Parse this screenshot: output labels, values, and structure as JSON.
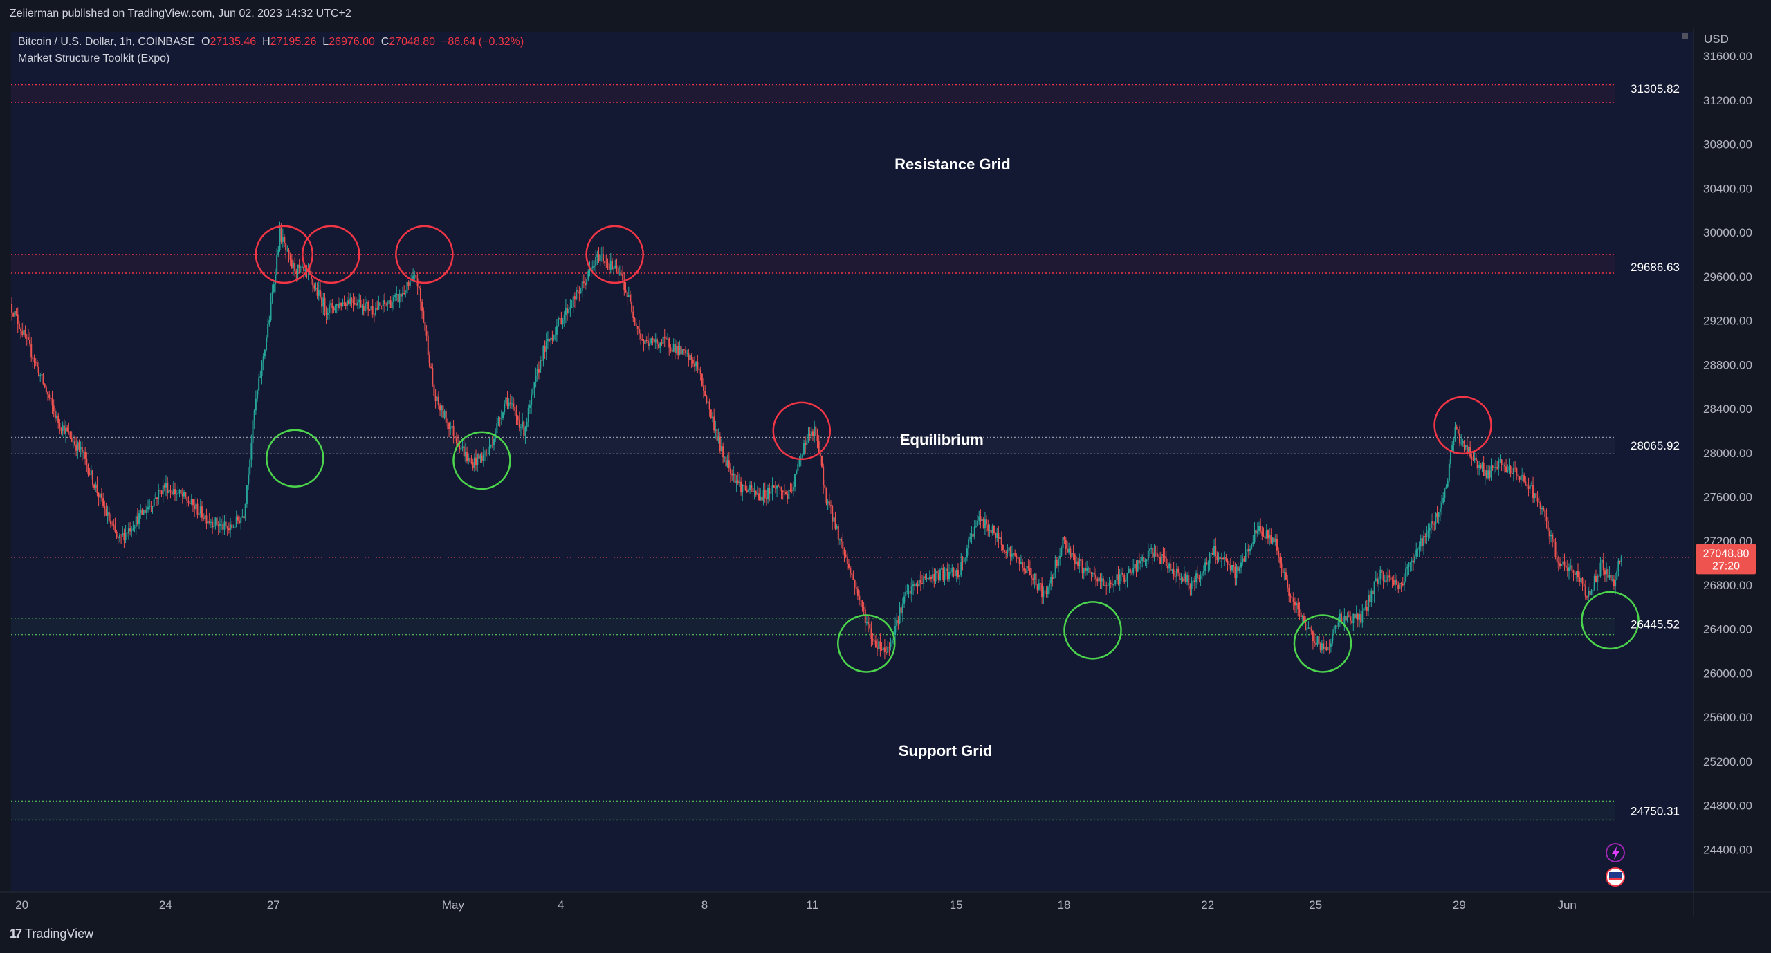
{
  "header": {
    "published_text": "Zeiierman published on TradingView.com, Jun 02, 2023 14:32 UTC+2"
  },
  "legend": {
    "symbol": "Bitcoin / U.S. Dollar, 1h, COINBASE",
    "open_label": "O",
    "open": "27135.46",
    "high_label": "H",
    "high": "27195.26",
    "low_label": "L",
    "low": "26976.00",
    "close_label": "C",
    "close": "27048.80",
    "change": "−86.64 (−0.32%)",
    "indicator": "Market Structure Toolkit (Expo)"
  },
  "footer": {
    "brand": "TradingView"
  },
  "colors": {
    "background": "#131722",
    "plot_background": "#131833",
    "up": "#26a69a",
    "down": "#ef5350",
    "resistance": "#f23645",
    "support": "#4caf50",
    "equilibrium": "#9598a1",
    "circle_red": "#f23645",
    "circle_green": "#4cd44c"
  },
  "icons": [
    "lightning-icon",
    "flag-icon"
  ],
  "chart_data": {
    "type": "candlestick",
    "symbol": "Bitcoin / U.S. Dollar",
    "interval": "1h",
    "currency": "USD",
    "y_ticks": [
      24400,
      24800,
      25200,
      25600,
      26000,
      26400,
      26800,
      27200,
      27600,
      28000,
      28400,
      28800,
      29200,
      29600,
      30000,
      30400,
      30800,
      31200,
      31600
    ],
    "y_tick_labels": [
      "24400.00",
      "24800.00",
      "25200.00",
      "25600.00",
      "26000.00",
      "26400.00",
      "26800.00",
      "27200.00",
      "27600.00",
      "28000.00",
      "28400.00",
      "28800.00",
      "29200.00",
      "29600.00",
      "30000.00",
      "30400.00",
      "30800.00",
      "31200.00",
      "31600.00"
    ],
    "ylim": [
      24020,
      31820
    ],
    "x_ticks": [
      "20",
      "24",
      "27",
      "May",
      "4",
      "8",
      "11",
      "15",
      "18",
      "22",
      "25",
      "29",
      "Jun"
    ],
    "x_tick_days": [
      -11,
      -7,
      -4,
      1,
      4,
      8,
      11,
      15,
      18,
      22,
      25,
      29,
      32
    ],
    "xlim": [
      -11.3,
      35.5
    ],
    "last_price": "27048.80",
    "countdown": "27:20",
    "price_path": [
      [
        -11.3,
        29350
      ],
      [
        -10.7,
        28900
      ],
      [
        -10,
        28300
      ],
      [
        -9.3,
        28000
      ],
      [
        -8.7,
        27500
      ],
      [
        -8.3,
        27200
      ],
      [
        -7.5,
        27500
      ],
      [
        -7,
        27700
      ],
      [
        -6.5,
        27600
      ],
      [
        -5.8,
        27400
      ],
      [
        -5.2,
        27300
      ],
      [
        -4.8,
        27450
      ],
      [
        -4.5,
        28400
      ],
      [
        -4.1,
        29200
      ],
      [
        -3.8,
        30000
      ],
      [
        -3.5,
        29700
      ],
      [
        -3,
        29600
      ],
      [
        -2.5,
        29300
      ],
      [
        -1.8,
        29400
      ],
      [
        -1.2,
        29300
      ],
      [
        -0.5,
        29400
      ],
      [
        0,
        29600
      ],
      [
        0.3,
        29000
      ],
      [
        0.5,
        28500
      ],
      [
        1,
        28200
      ],
      [
        1.5,
        27900
      ],
      [
        2,
        28000
      ],
      [
        2.5,
        28500
      ],
      [
        3,
        28200
      ],
      [
        3.5,
        28900
      ],
      [
        4,
        29200
      ],
      [
        4.6,
        29500
      ],
      [
        5.1,
        29800
      ],
      [
        5.7,
        29600
      ],
      [
        6.3,
        29000
      ],
      [
        7,
        29000
      ],
      [
        7.8,
        28800
      ],
      [
        8.5,
        28000
      ],
      [
        9,
        27700
      ],
      [
        9.6,
        27600
      ],
      [
        10,
        27700
      ],
      [
        10.4,
        27600
      ],
      [
        10.8,
        28100
      ],
      [
        11.1,
        28200
      ],
      [
        11.4,
        27600
      ],
      [
        11.8,
        27200
      ],
      [
        12.3,
        26700
      ],
      [
        12.7,
        26300
      ],
      [
        13.1,
        26200
      ],
      [
        13.6,
        26700
      ],
      [
        14.1,
        26850
      ],
      [
        14.6,
        26900
      ],
      [
        15.1,
        26900
      ],
      [
        15.6,
        27400
      ],
      [
        16,
        27300
      ],
      [
        16.5,
        27100
      ],
      [
        17.1,
        26900
      ],
      [
        17.5,
        26700
      ],
      [
        18,
        27200
      ],
      [
        18.4,
        27000
      ],
      [
        18.7,
        26900
      ],
      [
        19.2,
        26800
      ],
      [
        19.8,
        26900
      ],
      [
        20.5,
        27100
      ],
      [
        21,
        26950
      ],
      [
        21.6,
        26800
      ],
      [
        22.2,
        27100
      ],
      [
        22.8,
        26900
      ],
      [
        23.4,
        27300
      ],
      [
        23.9,
        27200
      ],
      [
        24.3,
        26700
      ],
      [
        24.8,
        26400
      ],
      [
        25.3,
        26200
      ],
      [
        25.7,
        26500
      ],
      [
        26.3,
        26500
      ],
      [
        26.8,
        26900
      ],
      [
        27.4,
        26800
      ],
      [
        27.8,
        27100
      ],
      [
        28.2,
        27300
      ],
      [
        28.6,
        27600
      ],
      [
        28.9,
        28200
      ],
      [
        29.3,
        28000
      ],
      [
        29.8,
        27800
      ],
      [
        30.2,
        27900
      ],
      [
        30.6,
        27800
      ],
      [
        31,
        27700
      ],
      [
        31.4,
        27400
      ],
      [
        31.8,
        27000
      ],
      [
        32.3,
        26900
      ],
      [
        32.6,
        26700
      ],
      [
        33,
        27000
      ],
      [
        33.3,
        26800
      ],
      [
        33.5,
        27050
      ]
    ],
    "levels": [
      {
        "name": "resistance-top",
        "value": 31305.82,
        "label": "31305.82",
        "band": [
          31180,
          31340
        ],
        "color": "resistance"
      },
      {
        "name": "resistance",
        "value": 29686.63,
        "label": "29686.63",
        "band": [
          29630,
          29800
        ],
        "color": "resistance"
      },
      {
        "name": "equilibrium",
        "value": 28065.92,
        "label": "28065.92",
        "band": [
          27990,
          28140
        ],
        "color": "equilibrium"
      },
      {
        "name": "support",
        "value": 26445.52,
        "label": "26445.52",
        "band": [
          26350,
          26500
        ],
        "color": "support"
      },
      {
        "name": "support-bottom",
        "value": 24750.31,
        "label": "24750.31",
        "band": [
          24670,
          24840
        ],
        "color": "support"
      }
    ],
    "annotations": [
      {
        "text": "Resistance Grid",
        "x": 14.9,
        "y": 30570
      },
      {
        "text": "Equilibrium",
        "x": 14.6,
        "y": 28070
      },
      {
        "text": "Support Grid",
        "x": 14.7,
        "y": 25250
      }
    ],
    "circles": [
      {
        "type": "high",
        "x": -3.7,
        "y": 29800
      },
      {
        "type": "high",
        "x": -2.4,
        "y": 29800
      },
      {
        "type": "high",
        "x": 0.2,
        "y": 29800
      },
      {
        "type": "high",
        "x": 5.5,
        "y": 29800
      },
      {
        "type": "high",
        "x": 10.7,
        "y": 28200
      },
      {
        "type": "high",
        "x": 29.1,
        "y": 28250
      },
      {
        "type": "low",
        "x": -3.4,
        "y": 27950
      },
      {
        "type": "low",
        "x": 1.8,
        "y": 27930
      },
      {
        "type": "low",
        "x": 12.5,
        "y": 26270
      },
      {
        "type": "low",
        "x": 18.8,
        "y": 26390
      },
      {
        "type": "low",
        "x": 25.2,
        "y": 26270
      },
      {
        "type": "low",
        "x": 33.2,
        "y": 26480
      }
    ]
  }
}
